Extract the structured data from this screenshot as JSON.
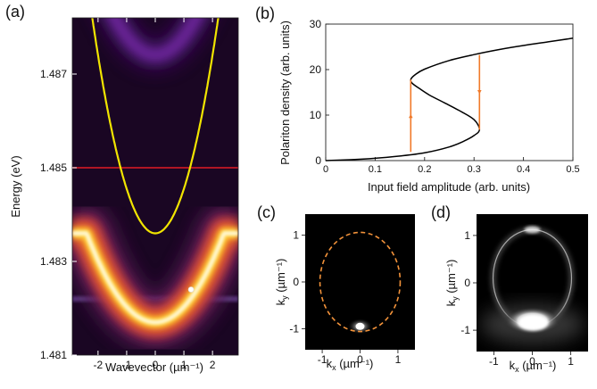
{
  "chart_data": [
    {
      "panel": "(a)",
      "type": "heatmap",
      "xlabel": "Wavevector (µm⁻¹)",
      "ylabel": "Energy (eV)",
      "xlim": [
        -2.9,
        2.9
      ],
      "ylim": [
        1.481,
        1.4882
      ],
      "x_ticks": [
        -2,
        -1,
        0,
        1,
        2
      ],
      "y_ticks": [
        1.481,
        1.483,
        1.485,
        1.487
      ],
      "y_tick_labels": [
        "1.481",
        "1.483",
        "1.485",
        "1.487"
      ],
      "colors": {
        "background": "#1a0623",
        "lower_branch": "#ffd23a",
        "upper_branch": "#7a2fae",
        "parabola": "#f1e400",
        "pump_line": "#e21b24",
        "dot": "#ffffff"
      },
      "pump_energy": 1.485,
      "pump_point": {
        "x": 1.25,
        "y": 1.4824
      },
      "lower_polariton": {
        "min": 1.4817,
        "curvature": 0.00033,
        "max": 1.4836
      },
      "upper_polariton": {
        "min": 1.4874,
        "curvature": 0.0004
      },
      "yellow_parabola": {
        "min": 1.4836,
        "curvature": 0.00095
      },
      "horizontal_band": 1.4822
    },
    {
      "panel": "(b)",
      "type": "line",
      "xlabel": "Input field amplitude (arb. units)",
      "ylabel": "Polariton density (arb. units)",
      "xlim": [
        0,
        0.5
      ],
      "ylim": [
        0,
        30
      ],
      "x_ticks": [
        0,
        0.1,
        0.2,
        0.3,
        0.4,
        0.5
      ],
      "x_tick_labels": [
        "0",
        "0.1",
        "0.2",
        "0.3",
        "0.4",
        "0.5"
      ],
      "y_ticks": [
        0,
        10,
        20,
        30
      ],
      "y_tick_labels": [
        "0",
        "10",
        "20",
        "30"
      ],
      "grid": false,
      "colors": {
        "curve": "#000000",
        "jump": "#f07a2a"
      },
      "s_curve": {
        "x": [
          0.0,
          0.05,
          0.1,
          0.15,
          0.2,
          0.25,
          0.28,
          0.3,
          0.311,
          0.3,
          0.27,
          0.24,
          0.21,
          0.19,
          0.175,
          0.172,
          0.18,
          0.2,
          0.25,
          0.3,
          0.35,
          0.4,
          0.45,
          0.5
        ],
        "y": [
          0.0,
          0.2,
          0.5,
          1.0,
          1.7,
          3.0,
          4.3,
          5.5,
          6.8,
          9.0,
          11.0,
          12.7,
          14.4,
          15.8,
          17.0,
          17.8,
          18.8,
          20.1,
          22.0,
          23.3,
          24.4,
          25.3,
          26.1,
          26.9
        ]
      },
      "jumps": [
        {
          "x": 0.172,
          "from": 1.9,
          "to": 17.8
        },
        {
          "x": 0.311,
          "from": 6.8,
          "to": 23.2
        }
      ]
    },
    {
      "panel": "(c)",
      "type": "heatmap",
      "xlabel": "kx (µm⁻¹)",
      "ylabel": "ky (µm⁻¹)",
      "xlim": [
        -1.45,
        1.45
      ],
      "ylim": [
        -1.45,
        1.45
      ],
      "x_ticks": [
        -1,
        0,
        1
      ],
      "y_ticks": [
        -1,
        0,
        1
      ],
      "tick_labels": [
        "-1",
        "0",
        "1"
      ],
      "colors": {
        "circle": "#f2923a"
      },
      "dashed_circle": {
        "cx": 0,
        "cy": 0,
        "r": 1.06
      },
      "bright_spot": {
        "x": 0,
        "y": -0.95
      }
    },
    {
      "panel": "(d)",
      "type": "heatmap",
      "xlabel": "kx (µm⁻¹)",
      "ylabel": "ky (µm⁻¹)",
      "xlim": [
        -1.45,
        1.45
      ],
      "ylim": [
        -1.45,
        1.45
      ],
      "x_ticks": [
        -1,
        0,
        1
      ],
      "y_ticks": [
        -1,
        0,
        1
      ],
      "tick_labels": [
        "-1",
        "0",
        "1"
      ],
      "ring": {
        "cx": 0,
        "cy": 0.1,
        "r": 1.02
      },
      "bright_region": {
        "x": 0,
        "y": -0.8
      }
    }
  ],
  "labels": {
    "a": "(a)",
    "b": "(b)",
    "c": "(c)",
    "d": "(d)",
    "a_x": "Wavevector (µm⁻¹)",
    "a_y": "Energy (eV)",
    "b_x": "Input field amplitude (arb. units)",
    "b_y": "Polariton density (arb. units)",
    "k_y": "k",
    "k_x": "k",
    "sub_y": "y",
    "sub_x": "x",
    "unit": " (µm⁻¹)"
  }
}
